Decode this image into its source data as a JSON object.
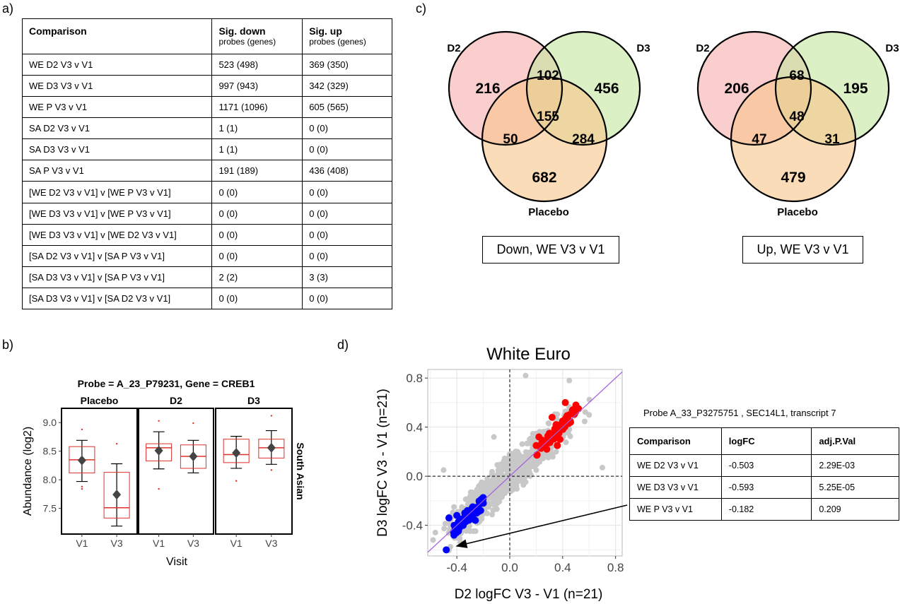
{
  "labels": {
    "a": "a)",
    "b": "b)",
    "c": "c)",
    "d": "d)"
  },
  "sig_table": {
    "headers": [
      {
        "main": "Comparison",
        "sub": ""
      },
      {
        "main": "Sig. down",
        "sub": "probes (genes)"
      },
      {
        "main": "Sig. up",
        "sub": "probes (genes)"
      }
    ],
    "rows": [
      [
        "WE D2 V3 v V1",
        "523 (498)",
        "369 (350)"
      ],
      [
        "WE D3 V3 v V1",
        "997 (943)",
        "342 (329)"
      ],
      [
        "WE P V3 v V1",
        "1171 (1096)",
        "605 (565)"
      ],
      [
        "SA D2 V3 v V1",
        "1 (1)",
        "0 (0)"
      ],
      [
        "SA D3 V3 v V1",
        "1 (1)",
        "0 (0)"
      ],
      [
        "SA P V3 v V1",
        "191 (189)",
        "436 (408)"
      ],
      [
        "[WE D2 V3 v V1] v [WE P V3 v V1]",
        "0 (0)",
        "0 (0)"
      ],
      [
        "[WE D3 V3 v V1] v [WE P V3 v V1]",
        "0 (0)",
        "0 (0)"
      ],
      [
        "[WE D3 V3 v V1] v [WE D2 V3 v V1]",
        "0 (0)",
        "0 (0)"
      ],
      [
        "[SA D2 V3 v V1] v [SA P V3 v V1]",
        "0 (0)",
        "0 (0)"
      ],
      [
        "[SA D3 V3 v V1] v [SA P V3 v V1]",
        "2 (2)",
        "3 (3)"
      ],
      [
        "[SA D3 V3 v V1] v [SA D2 V3 v V1]",
        "0 (0)",
        "0 (0)"
      ]
    ]
  },
  "venn": [
    {
      "label_a": "D2",
      "label_b": "D3",
      "label_c": "Placebo",
      "a_only": "216",
      "ab": "102",
      "b_only": "456",
      "abc": "155",
      "ac": "50",
      "bc": "284",
      "c_only": "682",
      "caption": "Down, WE V3 v V1"
    },
    {
      "label_a": "D2",
      "label_b": "D3",
      "label_c": "Placebo",
      "a_only": "206",
      "ab": "68",
      "b_only": "195",
      "abc": "48",
      "ac": "47",
      "bc": "31",
      "c_only": "479",
      "caption": "Up, WE V3 v V1"
    }
  ],
  "boxplot": {
    "title": "Probe = A_23_P79231,  Gene = CREB1",
    "ylabel": "Abundance (log2)",
    "xlabel": "Visit",
    "strip_right": "South Asian",
    "yticks": [
      7.5,
      8.0,
      8.5,
      9.0
    ],
    "ytick_labels": [
      "7.5",
      "8.0",
      "8.5",
      "9.0"
    ],
    "ylim": [
      7.05,
      9.25
    ],
    "facets": [
      {
        "name": "Placebo",
        "groups": [
          {
            "visit": "V1",
            "q1": 8.12,
            "median": 8.35,
            "q3": 8.58,
            "mean": 8.34,
            "whisk_lo": 7.97,
            "whisk_hi": 8.69,
            "points": [
              7.88,
              7.84,
              8.88
            ]
          },
          {
            "visit": "V3",
            "q1": 7.33,
            "median": 7.51,
            "q3": 8.13,
            "mean": 7.74,
            "whisk_lo": 7.19,
            "whisk_hi": 8.28,
            "points": [
              8.63
            ]
          }
        ]
      },
      {
        "name": "D2",
        "groups": [
          {
            "visit": "V1",
            "q1": 8.33,
            "median": 8.56,
            "q3": 8.63,
            "mean": 8.51,
            "whisk_lo": 8.19,
            "whisk_hi": 8.84,
            "points": [
              7.84,
              9.03
            ]
          },
          {
            "visit": "V3",
            "q1": 8.2,
            "median": 8.41,
            "q3": 8.61,
            "mean": 8.41,
            "whisk_lo": 8.12,
            "whisk_hi": 8.69,
            "points": [
              8.99
            ]
          }
        ]
      },
      {
        "name": "D3",
        "groups": [
          {
            "visit": "V1",
            "q1": 8.3,
            "median": 8.44,
            "q3": 8.71,
            "mean": 8.47,
            "whisk_lo": 8.2,
            "whisk_hi": 8.76,
            "points": [
              7.98
            ]
          },
          {
            "visit": "V3",
            "q1": 8.38,
            "median": 8.56,
            "q3": 8.71,
            "mean": 8.56,
            "whisk_lo": 8.27,
            "whisk_hi": 8.86,
            "points": [
              9.12,
              8.17
            ]
          }
        ]
      }
    ],
    "colors": {
      "box": "#e0302b",
      "mean": "#444444"
    }
  },
  "chart_data": {
    "type": "scatter",
    "title": "White Euro",
    "xlabel": "D2 logFC V3 - V1 (n=21)",
    "ylabel": "D3 logFC V3 - V1 (n=21)",
    "xlim": [
      -0.62,
      0.85
    ],
    "ylim": [
      -0.65,
      0.87
    ],
    "xticks": [
      -0.4,
      0.0,
      0.4,
      0.8
    ],
    "xtick_labels": [
      "-0.4",
      "0.0",
      "0.4",
      "0.8"
    ],
    "yticks": [
      -0.4,
      0.0,
      0.4,
      0.8
    ],
    "ytick_labels": [
      "-0.4",
      "0.0",
      "0.4",
      "0.8"
    ],
    "grid": true,
    "reference_lines": [
      "x=0 dashed",
      "y=0 dashed",
      "y=x purple"
    ],
    "series": [
      {
        "color": "#c8c8c8",
        "points": [
          [
            -0.28,
            -0.22
          ],
          [
            -0.15,
            -0.1
          ],
          [
            0.1,
            0.12
          ],
          [
            0.25,
            0.3
          ],
          [
            0.05,
            -0.08
          ],
          [
            -0.05,
            0.1
          ],
          [
            0.45,
            0.78
          ],
          [
            0.12,
            0.82
          ],
          [
            0.6,
            0.5
          ],
          [
            0.7,
            0.07
          ],
          [
            -0.58,
            -0.52
          ],
          [
            -0.5,
            0.05
          ],
          [
            -0.12,
            0.32
          ],
          [
            0.2,
            0.05
          ],
          [
            0.35,
            0.2
          ]
        ]
      },
      {
        "color": "#ff0000",
        "points": [
          [
            0.25,
            0.28
          ],
          [
            0.3,
            0.35
          ],
          [
            0.35,
            0.42
          ],
          [
            0.4,
            0.45
          ],
          [
            0.45,
            0.5
          ],
          [
            0.5,
            0.58
          ],
          [
            0.52,
            0.55
          ],
          [
            0.28,
            0.22
          ],
          [
            0.38,
            0.3
          ],
          [
            0.2,
            0.25
          ],
          [
            0.42,
            0.6
          ],
          [
            0.32,
            0.48
          ],
          [
            0.46,
            0.44
          ],
          [
            0.22,
            0.32
          ],
          [
            0.36,
            0.25
          ]
        ]
      },
      {
        "color": "#0000ff",
        "points": [
          [
            -0.25,
            -0.3
          ],
          [
            -0.3,
            -0.35
          ],
          [
            -0.35,
            -0.38
          ],
          [
            -0.28,
            -0.25
          ],
          [
            -0.22,
            -0.28
          ],
          [
            -0.38,
            -0.42
          ],
          [
            -0.42,
            -0.4
          ],
          [
            -0.32,
            -0.28
          ],
          [
            -0.2,
            -0.22
          ],
          [
            -0.4,
            -0.32
          ],
          [
            -0.26,
            -0.36
          ],
          [
            -0.34,
            -0.3
          ],
          [
            -0.46,
            -0.34
          ],
          [
            -0.48,
            -0.6
          ]
        ]
      }
    ],
    "colors": {
      "ref_line": "#a25adb"
    }
  },
  "probe_table": {
    "title": "Probe A_33_P3275751 , SEC14L1, transcript 7",
    "headers": [
      "Comparison",
      "logFC",
      "adj.P.Val"
    ],
    "rows": [
      [
        "WE D2 V3 v V1",
        "-0.503",
        "2.29E-03"
      ],
      [
        "WE D3 V3 v V1",
        "-0.593",
        "5.25E-05"
      ],
      [
        "WE P V3 v V1",
        "-0.182",
        "0.209"
      ]
    ]
  }
}
